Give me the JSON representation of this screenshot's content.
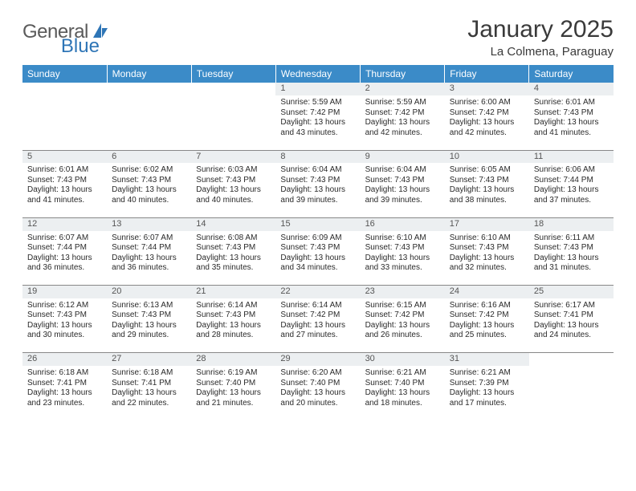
{
  "brand": {
    "part1": "General",
    "part2": "Blue"
  },
  "title": "January 2025",
  "subtitle": "La Colmena, Paraguay",
  "colors": {
    "header_bg": "#3b8bc8",
    "header_text": "#ffffff",
    "daynum_bg": "#eceff1",
    "text": "#2a2a2a",
    "brand_gray": "#5a5a5a",
    "brand_blue": "#2e75b6",
    "row_divider": "#888888"
  },
  "typography": {
    "title_fontsize": 30,
    "subtitle_fontsize": 15,
    "weekday_fontsize": 12,
    "cell_fontsize": 10
  },
  "weekdays": [
    "Sunday",
    "Monday",
    "Tuesday",
    "Wednesday",
    "Thursday",
    "Friday",
    "Saturday"
  ],
  "weeks": [
    [
      null,
      null,
      null,
      {
        "day": "1",
        "sunrise": "Sunrise: 5:59 AM",
        "sunset": "Sunset: 7:42 PM",
        "daylight": "Daylight: 13 hours and 43 minutes."
      },
      {
        "day": "2",
        "sunrise": "Sunrise: 5:59 AM",
        "sunset": "Sunset: 7:42 PM",
        "daylight": "Daylight: 13 hours and 42 minutes."
      },
      {
        "day": "3",
        "sunrise": "Sunrise: 6:00 AM",
        "sunset": "Sunset: 7:42 PM",
        "daylight": "Daylight: 13 hours and 42 minutes."
      },
      {
        "day": "4",
        "sunrise": "Sunrise: 6:01 AM",
        "sunset": "Sunset: 7:43 PM",
        "daylight": "Daylight: 13 hours and 41 minutes."
      }
    ],
    [
      {
        "day": "5",
        "sunrise": "Sunrise: 6:01 AM",
        "sunset": "Sunset: 7:43 PM",
        "daylight": "Daylight: 13 hours and 41 minutes."
      },
      {
        "day": "6",
        "sunrise": "Sunrise: 6:02 AM",
        "sunset": "Sunset: 7:43 PM",
        "daylight": "Daylight: 13 hours and 40 minutes."
      },
      {
        "day": "7",
        "sunrise": "Sunrise: 6:03 AM",
        "sunset": "Sunset: 7:43 PM",
        "daylight": "Daylight: 13 hours and 40 minutes."
      },
      {
        "day": "8",
        "sunrise": "Sunrise: 6:04 AM",
        "sunset": "Sunset: 7:43 PM",
        "daylight": "Daylight: 13 hours and 39 minutes."
      },
      {
        "day": "9",
        "sunrise": "Sunrise: 6:04 AM",
        "sunset": "Sunset: 7:43 PM",
        "daylight": "Daylight: 13 hours and 39 minutes."
      },
      {
        "day": "10",
        "sunrise": "Sunrise: 6:05 AM",
        "sunset": "Sunset: 7:43 PM",
        "daylight": "Daylight: 13 hours and 38 minutes."
      },
      {
        "day": "11",
        "sunrise": "Sunrise: 6:06 AM",
        "sunset": "Sunset: 7:44 PM",
        "daylight": "Daylight: 13 hours and 37 minutes."
      }
    ],
    [
      {
        "day": "12",
        "sunrise": "Sunrise: 6:07 AM",
        "sunset": "Sunset: 7:44 PM",
        "daylight": "Daylight: 13 hours and 36 minutes."
      },
      {
        "day": "13",
        "sunrise": "Sunrise: 6:07 AM",
        "sunset": "Sunset: 7:44 PM",
        "daylight": "Daylight: 13 hours and 36 minutes."
      },
      {
        "day": "14",
        "sunrise": "Sunrise: 6:08 AM",
        "sunset": "Sunset: 7:43 PM",
        "daylight": "Daylight: 13 hours and 35 minutes."
      },
      {
        "day": "15",
        "sunrise": "Sunrise: 6:09 AM",
        "sunset": "Sunset: 7:43 PM",
        "daylight": "Daylight: 13 hours and 34 minutes."
      },
      {
        "day": "16",
        "sunrise": "Sunrise: 6:10 AM",
        "sunset": "Sunset: 7:43 PM",
        "daylight": "Daylight: 13 hours and 33 minutes."
      },
      {
        "day": "17",
        "sunrise": "Sunrise: 6:10 AM",
        "sunset": "Sunset: 7:43 PM",
        "daylight": "Daylight: 13 hours and 32 minutes."
      },
      {
        "day": "18",
        "sunrise": "Sunrise: 6:11 AM",
        "sunset": "Sunset: 7:43 PM",
        "daylight": "Daylight: 13 hours and 31 minutes."
      }
    ],
    [
      {
        "day": "19",
        "sunrise": "Sunrise: 6:12 AM",
        "sunset": "Sunset: 7:43 PM",
        "daylight": "Daylight: 13 hours and 30 minutes."
      },
      {
        "day": "20",
        "sunrise": "Sunrise: 6:13 AM",
        "sunset": "Sunset: 7:43 PM",
        "daylight": "Daylight: 13 hours and 29 minutes."
      },
      {
        "day": "21",
        "sunrise": "Sunrise: 6:14 AM",
        "sunset": "Sunset: 7:43 PM",
        "daylight": "Daylight: 13 hours and 28 minutes."
      },
      {
        "day": "22",
        "sunrise": "Sunrise: 6:14 AM",
        "sunset": "Sunset: 7:42 PM",
        "daylight": "Daylight: 13 hours and 27 minutes."
      },
      {
        "day": "23",
        "sunrise": "Sunrise: 6:15 AM",
        "sunset": "Sunset: 7:42 PM",
        "daylight": "Daylight: 13 hours and 26 minutes."
      },
      {
        "day": "24",
        "sunrise": "Sunrise: 6:16 AM",
        "sunset": "Sunset: 7:42 PM",
        "daylight": "Daylight: 13 hours and 25 minutes."
      },
      {
        "day": "25",
        "sunrise": "Sunrise: 6:17 AM",
        "sunset": "Sunset: 7:41 PM",
        "daylight": "Daylight: 13 hours and 24 minutes."
      }
    ],
    [
      {
        "day": "26",
        "sunrise": "Sunrise: 6:18 AM",
        "sunset": "Sunset: 7:41 PM",
        "daylight": "Daylight: 13 hours and 23 minutes."
      },
      {
        "day": "27",
        "sunrise": "Sunrise: 6:18 AM",
        "sunset": "Sunset: 7:41 PM",
        "daylight": "Daylight: 13 hours and 22 minutes."
      },
      {
        "day": "28",
        "sunrise": "Sunrise: 6:19 AM",
        "sunset": "Sunset: 7:40 PM",
        "daylight": "Daylight: 13 hours and 21 minutes."
      },
      {
        "day": "29",
        "sunrise": "Sunrise: 6:20 AM",
        "sunset": "Sunset: 7:40 PM",
        "daylight": "Daylight: 13 hours and 20 minutes."
      },
      {
        "day": "30",
        "sunrise": "Sunrise: 6:21 AM",
        "sunset": "Sunset: 7:40 PM",
        "daylight": "Daylight: 13 hours and 18 minutes."
      },
      {
        "day": "31",
        "sunrise": "Sunrise: 6:21 AM",
        "sunset": "Sunset: 7:39 PM",
        "daylight": "Daylight: 13 hours and 17 minutes."
      },
      null
    ]
  ]
}
